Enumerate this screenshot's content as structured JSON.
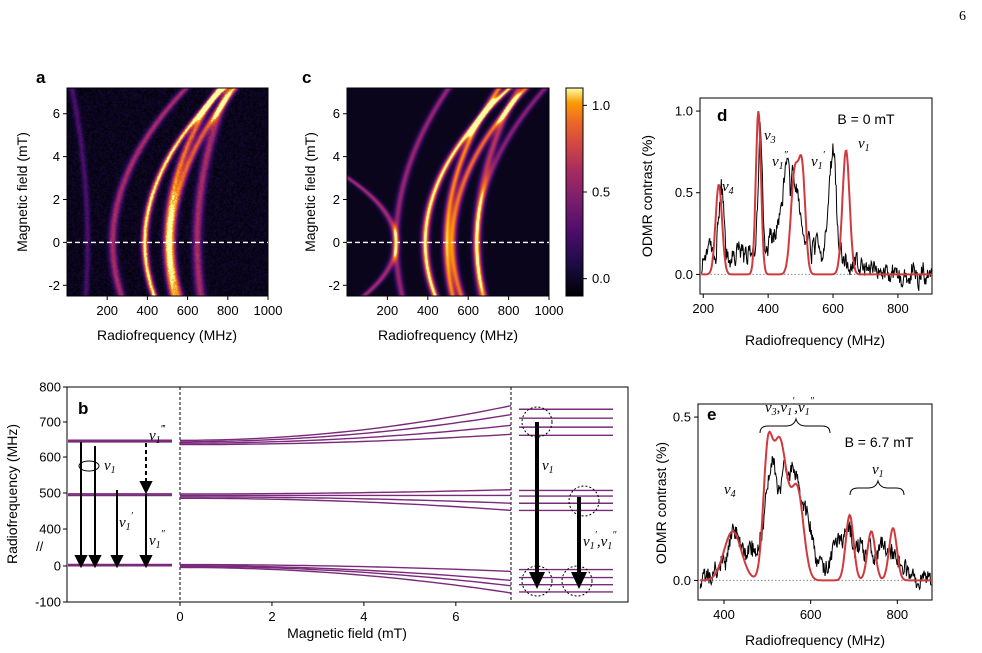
{
  "page_number": "6",
  "chart_data": [
    {
      "panel": "a",
      "type": "heatmap",
      "xlabel": "Radiofrequency (MHz)",
      "ylabel": "Magnetic field (mT)",
      "xlim": [
        0,
        1000
      ],
      "ylim": [
        -2.5,
        7.2
      ],
      "xticks": [
        200,
        400,
        600,
        800,
        1000
      ],
      "xtick_labels": [
        "200",
        "400",
        "600",
        "800",
        "1000"
      ],
      "yticks": [
        -2,
        0,
        2,
        4,
        6
      ],
      "ytick_labels": [
        "-2",
        "0",
        "2",
        "4",
        "6"
      ],
      "guide_line_y": 0,
      "branches": [
        {
          "f0": 100,
          "k": -1.5,
          "w": 10,
          "a": 0.25
        },
        {
          "f0": 225,
          "k": 7,
          "w": 14,
          "a": 0.55
        },
        {
          "f0": 385,
          "k": 7.5,
          "w": 12,
          "a": 1.0
        },
        {
          "f0": 495,
          "k": 5,
          "w": 14,
          "a": 0.8
        },
        {
          "f0": 520,
          "k": 6,
          "w": 14,
          "a": 0.75
        },
        {
          "f0": 645,
          "k": 3,
          "w": 16,
          "a": 0.55
        }
      ]
    },
    {
      "panel": "c",
      "type": "heatmap",
      "xlabel": "Radiofrequency (MHz)",
      "ylabel": "Magnetic field (mT)",
      "xlim": [
        0,
        1000
      ],
      "ylim": [
        -2.5,
        7.2
      ],
      "xticks": [
        200,
        400,
        600,
        800,
        1000
      ],
      "xtick_labels": [
        "200",
        "400",
        "600",
        "800",
        "1000"
      ],
      "yticks": [
        -2,
        0,
        2,
        4,
        6
      ],
      "ytick_labels": [
        "-2",
        "0",
        "2",
        "4",
        "6"
      ],
      "guide_line_y": 0,
      "colorbar": {
        "range": [
          -0.1,
          1.1
        ],
        "ticks": [
          0.0,
          0.5,
          1.0
        ],
        "tick_labels": [
          "0.0",
          "0.5",
          "1.0"
        ]
      },
      "branches": [
        {
          "f0": 240,
          "k": -26,
          "w": 12,
          "a": 0.55
        },
        {
          "f0": 240,
          "k": 5,
          "w": 12,
          "a": 0.5
        },
        {
          "f0": 385,
          "k": 8,
          "w": 13,
          "a": 1.0
        },
        {
          "f0": 490,
          "k": 5,
          "w": 13,
          "a": 0.85
        },
        {
          "f0": 520,
          "k": 7,
          "w": 13,
          "a": 0.8
        },
        {
          "f0": 640,
          "k": 4,
          "w": 14,
          "a": 0.6
        },
        {
          "f0": 640,
          "k": 6.5,
          "w": 12,
          "a": 0.45
        }
      ]
    },
    {
      "panel": "d",
      "type": "line",
      "xlabel": "Radiofrequency (MHz)",
      "ylabel": "ODMR contrast (%)",
      "xlim": [
        190,
        905
      ],
      "ylim": [
        -0.12,
        1.08
      ],
      "xticks": [
        200,
        400,
        600,
        800
      ],
      "xtick_labels": [
        "200",
        "400",
        "600",
        "800"
      ],
      "yticks": [
        0,
        0.5,
        1.0
      ],
      "ytick_labels": [
        "0.0",
        "0.5",
        "1.0"
      ],
      "field_label": "B = 0 mT",
      "peaks": [
        {
          "center": 248,
          "height": 0.55,
          "width": 10
        },
        {
          "center": 370,
          "height": 1.0,
          "width": 8
        },
        {
          "center": 482,
          "height": 0.62,
          "width": 12
        },
        {
          "center": 505,
          "height": 0.6,
          "width": 10
        },
        {
          "center": 640,
          "height": 0.76,
          "width": 11
        }
      ],
      "series": [
        {
          "kind": "measured",
          "color": "#000000",
          "values": [
            0.05,
            0.08,
            0.1,
            0.14,
            0.17,
            0.21,
            0.15,
            0.13,
            0.08,
            0.1,
            0.33,
            0.4,
            0.55,
            0.5,
            0.32,
            0.14,
            0.1,
            0.11,
            0.07,
            0.13,
            0.1,
            0.09,
            0.15,
            0.18,
            0.14,
            0.17,
            0.11,
            0.17,
            0.08,
            0.13,
            0.14,
            0.1,
            0.18,
            0.12,
            0.3,
            0.56,
            0.95,
            0.82,
            0.4,
            0.17,
            0.17,
            0.13,
            0.27,
            0.25,
            0.21,
            0.24,
            0.23,
            0.35,
            0.33,
            0.39,
            0.46,
            0.6,
            0.66,
            0.68,
            0.65,
            0.48,
            0.63,
            0.61,
            0.52,
            0.51,
            0.46,
            0.38,
            0.28,
            0.24,
            0.18,
            0.16,
            0.23,
            0.2,
            0.1,
            0.22,
            0.12,
            0.24,
            0.21,
            0.17,
            0.11,
            0.14,
            0.2,
            0.24,
            0.37,
            0.56,
            0.68,
            0.77,
            0.73,
            0.56,
            0.29,
            0.13,
            0.2,
            0.1,
            0.07,
            0.08,
            0.07,
            0.03,
            0.03,
            0.04,
            0.08,
            0.1,
            0.13,
            0.02,
            0.02,
            0.07,
            0.03,
            0.02,
            0.05,
            0.07,
            0.01,
            0.05,
            0.03,
            0.05,
            0.01,
            0.0,
            0.06,
            -0.01,
            0.0,
            0.01,
            0.04,
            0.02,
            -0.03,
            -0.02,
            0.02,
            -0.03,
            0.05,
            0.01,
            0.0,
            -0.04,
            -0.06,
            -0.03,
            0.04,
            -0.03,
            -0.03,
            -0.05,
            0.05,
            0.06,
            0.01,
            0.04,
            -0.07,
            -0.03,
            0.01,
            0.04,
            -0.04,
            -0.04,
            0.01,
            0.0,
            0.02
          ]
        },
        {
          "kind": "simulated",
          "color": "#cf3a3f"
        }
      ],
      "annotations": [
        "ν4",
        "ν3",
        "ν1″",
        "ν1′",
        "ν1"
      ]
    },
    {
      "panel": "b",
      "type": "line",
      "xlabel": "Magnetic field (mT)",
      "ylabel": "Radiofrequency (MHz)",
      "xlim": [
        0,
        7.2
      ],
      "ylim": [
        -100,
        800
      ],
      "xticks": [
        0,
        2,
        4,
        6
      ],
      "xtick_labels": [
        "0",
        "2",
        "4",
        "6"
      ],
      "yticks": [
        -100,
        0,
        400,
        500,
        600,
        700,
        800
      ],
      "ytick_labels": [
        "-100",
        "0",
        "400",
        "500",
        "600",
        "700",
        "800"
      ],
      "series": [
        {
          "name": "level 1",
          "values_at_0": 648,
          "values_at_7.2": 745
        },
        {
          "name": "level 2",
          "values_at_0": 644,
          "values_at_7.2": 720
        },
        {
          "name": "level 3",
          "values_at_0": 640,
          "values_at_7.2": 690
        },
        {
          "name": "level 4",
          "values_at_0": 636,
          "values_at_7.2": 665
        },
        {
          "name": "level 5",
          "values_at_0": 498,
          "values_at_7.2": 510
        },
        {
          "name": "level 6",
          "values_at_0": 494,
          "values_at_7.2": 494
        },
        {
          "name": "level 7",
          "values_at_0": 490,
          "values_at_7.2": 472
        },
        {
          "name": "level 8",
          "values_at_0": 486,
          "values_at_7.2": 452
        },
        {
          "name": "level 9",
          "values_at_0": 4,
          "values_at_7.2": -15
        },
        {
          "name": "level 10",
          "values_at_0": 1,
          "values_at_7.2": -40
        },
        {
          "name": "level 11",
          "values_at_0": -1,
          "values_at_7.2": -55
        },
        {
          "name": "level 12",
          "values_at_0": -4,
          "values_at_7.2": -75
        }
      ],
      "left_levels": [
        648,
        644,
        498,
        494,
        4,
        1
      ],
      "right_levels": [
        735,
        710,
        685,
        662,
        508,
        492,
        472,
        452,
        -10,
        -32,
        -52,
        -72
      ],
      "annotations": [
        "ν1",
        "ν1‴",
        "ν1′",
        "ν1″",
        "ν1",
        "ν1′,ν1″"
      ]
    },
    {
      "panel": "e",
      "type": "line",
      "xlabel": "Radiofrequency (MHz)",
      "ylabel": "ODMR contrast (%)",
      "xlim": [
        340,
        880
      ],
      "ylim": [
        -0.06,
        0.54
      ],
      "xticks": [
        400,
        600,
        800
      ],
      "xtick_labels": [
        "400",
        "600",
        "800"
      ],
      "yticks": [
        0,
        0.5
      ],
      "ytick_labels": [
        "0.0",
        "0.5"
      ],
      "field_label": "B = 6.7 mT",
      "peaks": [
        {
          "center": 420,
          "height": 0.15,
          "width": 20
        },
        {
          "center": 500,
          "height": 0.3,
          "width": 10
        },
        {
          "center": 528,
          "height": 0.43,
          "width": 18
        },
        {
          "center": 570,
          "height": 0.26,
          "width": 14
        },
        {
          "center": 690,
          "height": 0.2,
          "width": 9
        },
        {
          "center": 740,
          "height": 0.15,
          "width": 9
        },
        {
          "center": 790,
          "height": 0.16,
          "width": 9
        }
      ],
      "series": [
        {
          "kind": "measured",
          "color": "#000000",
          "values": [
            0.0,
            0.01,
            0.02,
            -0.01,
            0.04,
            0.02,
            0.07,
            0.05,
            0.12,
            0.16,
            0.14,
            0.12,
            0.08,
            0.09,
            0.1,
            0.08,
            0.11,
            0.15,
            0.26,
            0.33,
            0.37,
            0.28,
            0.29,
            0.36,
            0.31,
            0.35,
            0.33,
            0.28,
            0.23,
            0.22,
            0.16,
            0.1,
            0.05,
            0.05,
            0.03,
            0.05,
            0.09,
            0.12,
            0.13,
            0.12,
            0.16,
            0.15,
            0.09,
            0.11,
            0.11,
            0.07,
            0.14,
            0.08,
            0.06,
            0.11,
            0.12,
            0.09,
            0.09,
            0.08,
            0.06,
            0.04,
            0.04,
            0.01,
            0.02,
            0.0,
            -0.01,
            0.01,
            0.02,
            -0.01
          ]
        },
        {
          "kind": "simulated",
          "color": "#cf3a3f"
        }
      ],
      "annotations": [
        "ν4",
        "ν3,ν1′,ν1″",
        "ν1"
      ]
    }
  ]
}
